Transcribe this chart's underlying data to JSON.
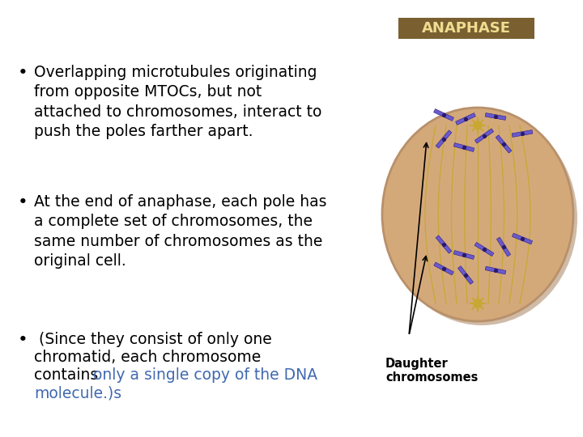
{
  "background_color": "#ffffff",
  "bullet_points": [
    {
      "black_text": "Overlapping microtubules originating\nfrom opposite MTOCs, but not\nattached to chromosomes, interact to\npush the poles farther apart.",
      "blue_text": null
    },
    {
      "black_text": "At the end of anaphase, each pole has\na complete set of chromosomes, the\nsame number of chromosomes as the\noriginal cell.",
      "blue_text": null
    },
    {
      "black_text": " (Since they consist of only one\nchromatid, each chromosome\ncontains ",
      "blue_text": "only a single copy of the DNA\nmolecule.)s"
    }
  ],
  "image_label": "Daughter\nchromosomes",
  "anaphase_label": "ANAPHASE",
  "anaphase_label_bg": "#7a6030",
  "anaphase_label_color": "#f0dc90",
  "cell_color": "#d4a97a",
  "cell_outline_color": "#b8906a",
  "spindle_color": "#c8a832",
  "chromosome_color": "#6a5acd",
  "mtoc_color": "#c8a832",
  "text_color": "#000000",
  "blue_text_color": "#4169b0",
  "font_size": 13.5
}
